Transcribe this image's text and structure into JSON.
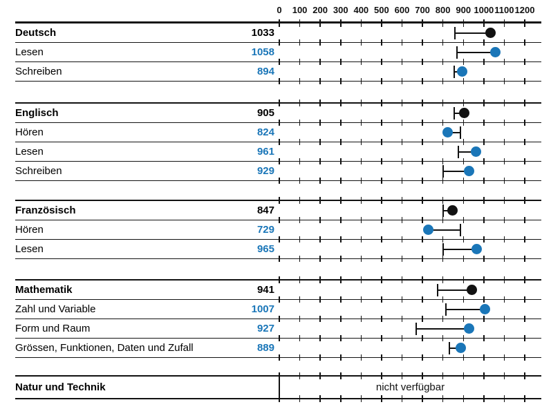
{
  "colors": {
    "blue": "#1a76b8",
    "black": "#121212",
    "line": "#111111"
  },
  "chart_data": {
    "type": "scatter",
    "title": "",
    "x_axis": {
      "min": 0,
      "max": 1200,
      "tick_interval": 100,
      "tick_labels": [
        "0",
        "100",
        "200",
        "300",
        "400",
        "500",
        "600",
        "700",
        "800",
        "900",
        "1000",
        "1100",
        "1200"
      ],
      "position": "top",
      "grid": "row-separators-with-tick-crosses"
    },
    "legend": "none",
    "sections": [
      {
        "rows": [
          {
            "label": "Deutsch",
            "value": "1033",
            "score": 1033,
            "ref_marker": 860,
            "kind": "header"
          },
          {
            "label": "Lesen",
            "value": "1058",
            "score": 1058,
            "ref_marker": 870,
            "kind": "sub"
          },
          {
            "label": "Schreiben",
            "value": "894",
            "score": 894,
            "ref_marker": 855,
            "kind": "sub"
          }
        ]
      },
      {
        "rows": [
          {
            "label": "Englisch",
            "value": "905",
            "score": 905,
            "ref_marker": 855,
            "kind": "header"
          },
          {
            "label": "Hören",
            "value": "824",
            "score": 824,
            "ref_marker": 885,
            "kind": "sub"
          },
          {
            "label": "Lesen",
            "value": "961",
            "score": 961,
            "ref_marker": 875,
            "kind": "sub"
          },
          {
            "label": "Schreiben",
            "value": "929",
            "score": 929,
            "ref_marker": 800,
            "kind": "sub"
          }
        ]
      },
      {
        "rows": [
          {
            "label": "Französisch",
            "value": "847",
            "score": 847,
            "ref_marker": 800,
            "kind": "header"
          },
          {
            "label": "Hören",
            "value": "729",
            "score": 729,
            "ref_marker": 885,
            "kind": "sub"
          },
          {
            "label": "Lesen",
            "value": "965",
            "score": 965,
            "ref_marker": 800,
            "kind": "sub"
          }
        ]
      },
      {
        "rows": [
          {
            "label": "Mathematik",
            "value": "941",
            "score": 941,
            "ref_marker": 775,
            "kind": "header"
          },
          {
            "label": "Zahl und Variable",
            "value": "1007",
            "score": 1007,
            "ref_marker": 815,
            "kind": "sub"
          },
          {
            "label": "Form und Raum",
            "value": "927",
            "score": 927,
            "ref_marker": 670,
            "kind": "sub"
          },
          {
            "label": "Grössen, Funktionen, Daten und Zufall",
            "value": "889",
            "score": 889,
            "ref_marker": 830,
            "kind": "sub"
          }
        ]
      }
    ],
    "unavailable_row": {
      "label": "Natur und Technik",
      "note": "nicht verfügbar"
    }
  }
}
